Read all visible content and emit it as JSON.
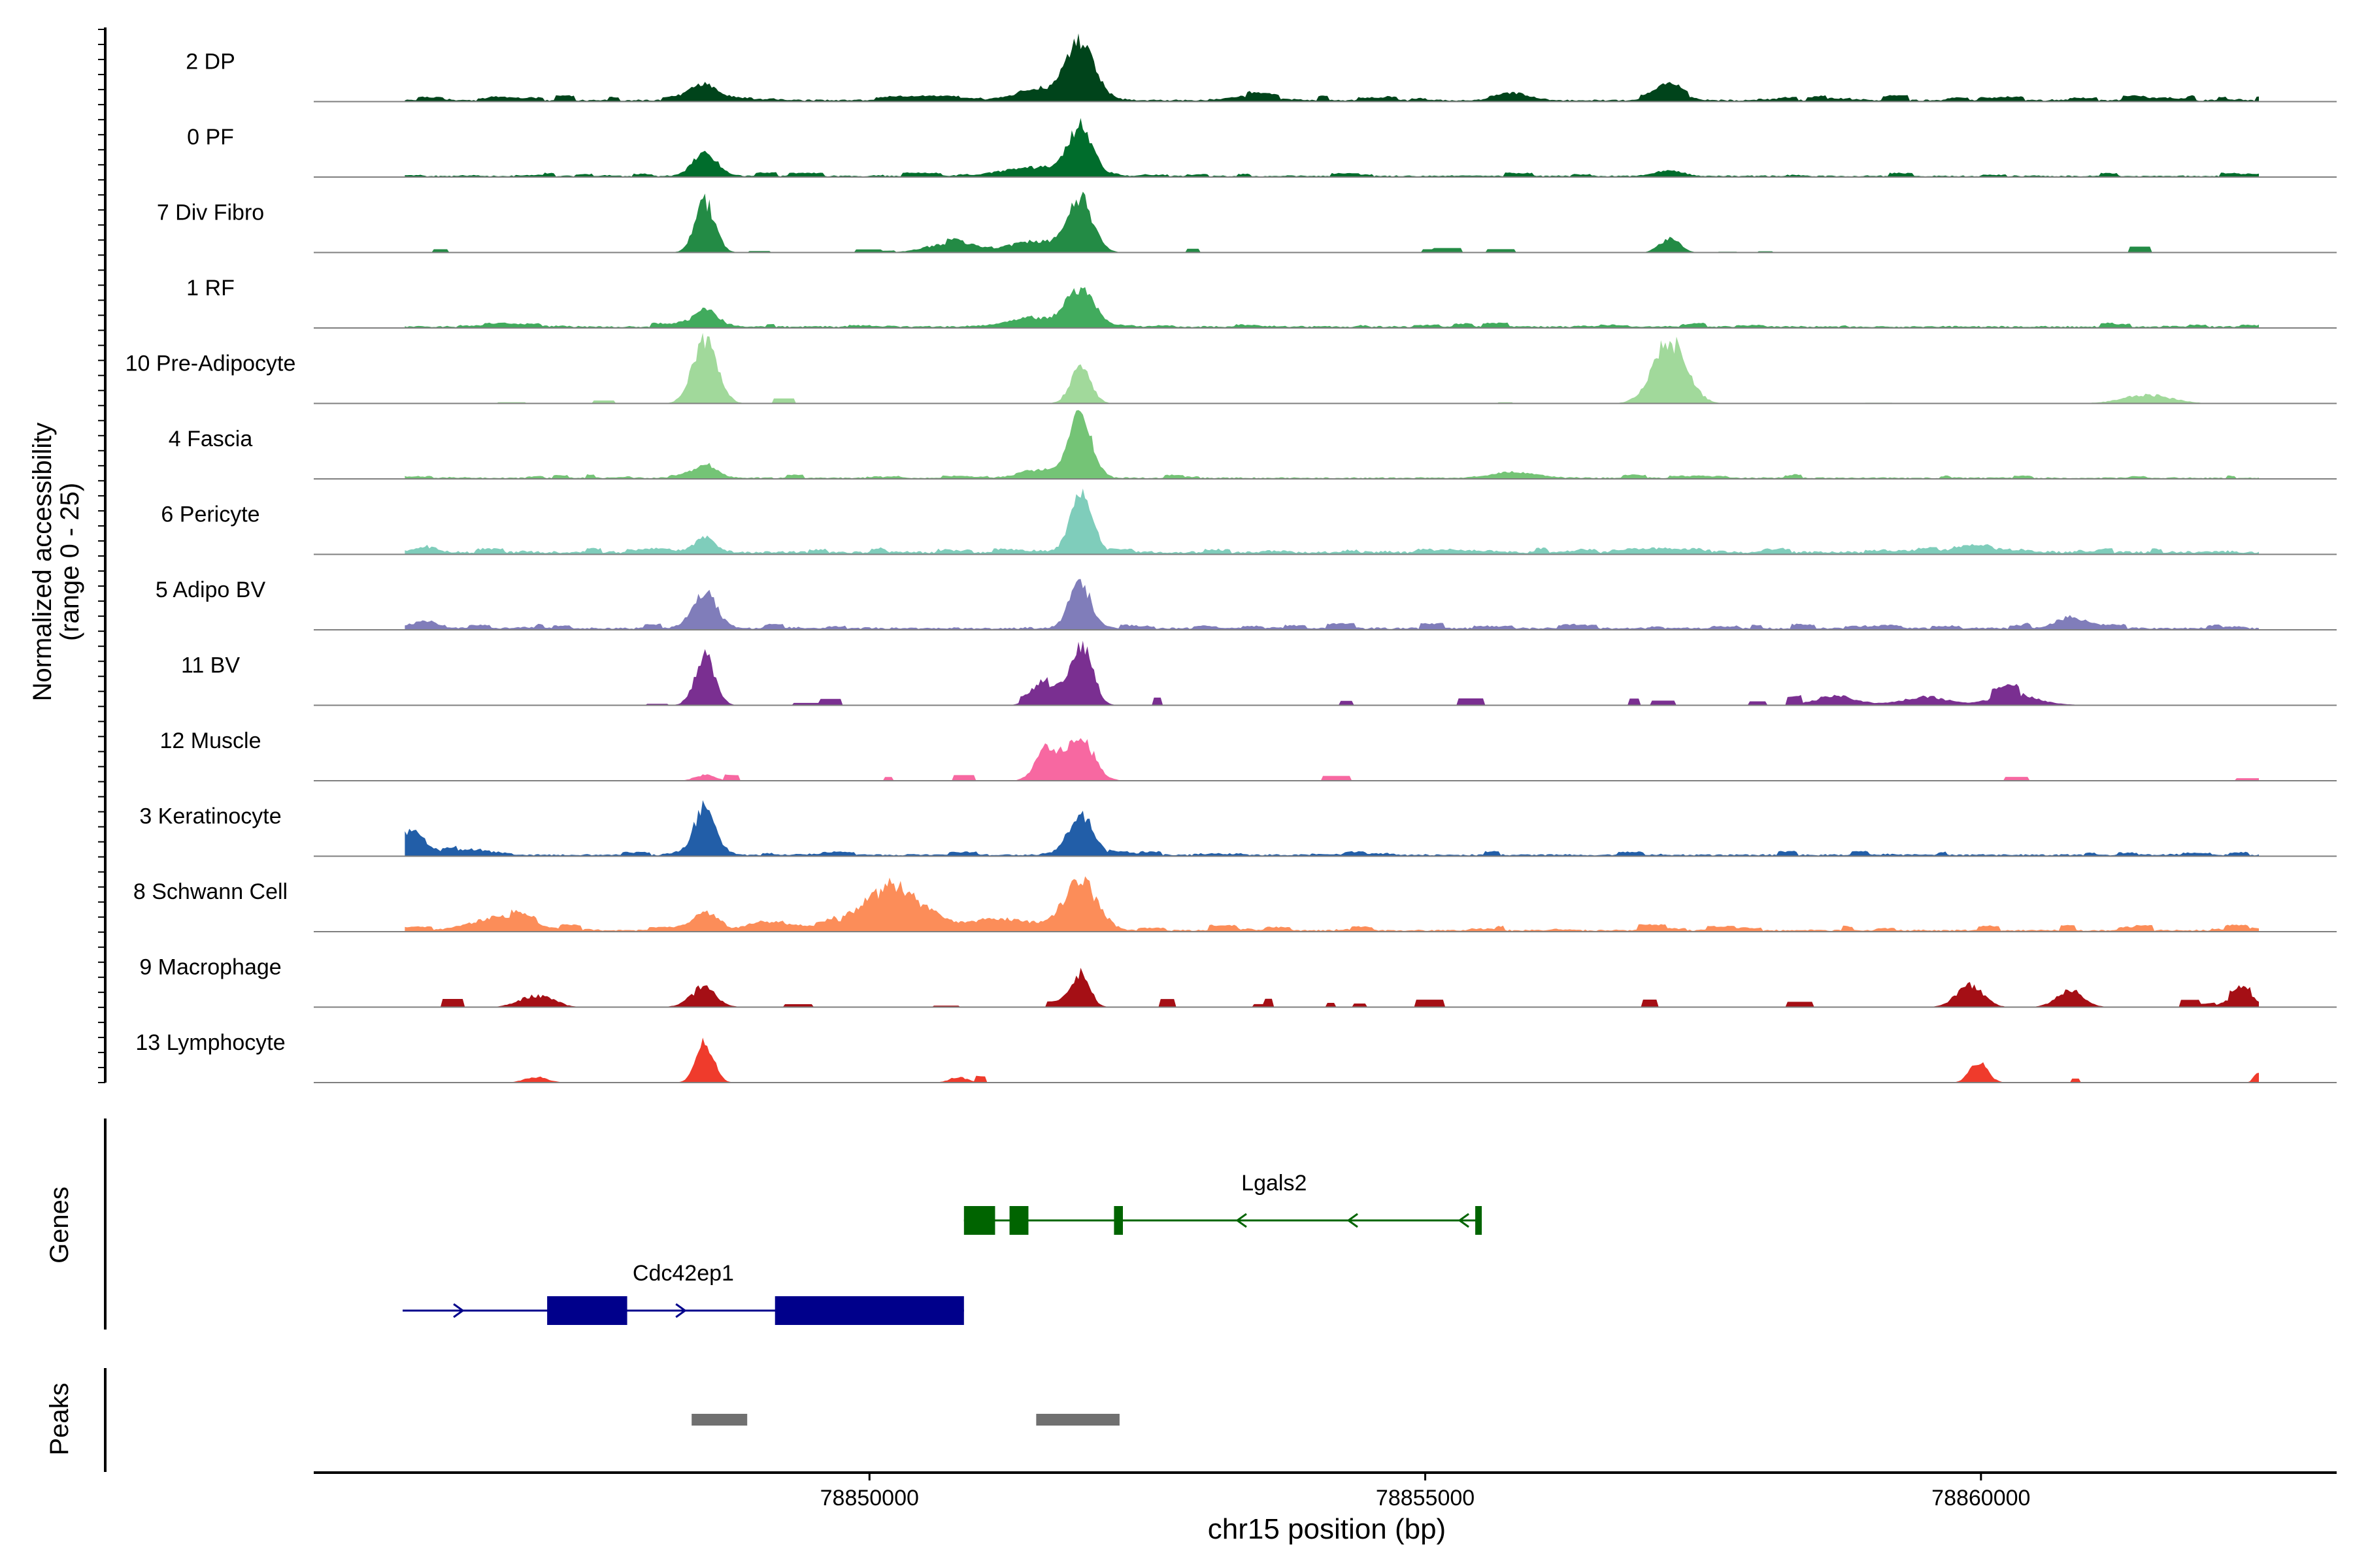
{
  "chart_data": {
    "type": "area",
    "ylabel_line1": "Normalized accessibility",
    "ylabel_line2": "(range 0 - 25)",
    "ylim": [
      0,
      25
    ],
    "xlabel": "chr15 position (bp)",
    "xlim": [
      78845000,
      78863200
    ],
    "xticks": [
      78850000,
      78855000,
      78860000
    ],
    "xtick_labels": [
      "78850000",
      "78855000",
      "78860000"
    ],
    "track_start": 78845820,
    "track_end": 78862500,
    "genes_label": "Genes",
    "peaks_label": "Peaks",
    "tracks": [
      {
        "name": "2 DP",
        "color": "#00441b",
        "baseline": 0.5,
        "noise_p": 0.55,
        "noise_h": 1.6,
        "seed": 3,
        "peaks": [
          [
            78848520,
            120,
            5.5
          ],
          [
            78851900,
            130,
            19
          ],
          [
            78851580,
            250,
            3
          ],
          [
            78857200,
            120,
            4.5
          ],
          [
            78855800,
            140,
            2.5
          ],
          [
            78853400,
            180,
            1.3
          ]
        ]
      },
      {
        "name": "0 PF",
        "color": "#006d2c",
        "baseline": 0.4,
        "noise_p": 0.45,
        "noise_h": 1.2,
        "seed": 7,
        "peaks": [
          [
            78848520,
            110,
            8
          ],
          [
            78851900,
            110,
            16
          ],
          [
            78851500,
            300,
            3
          ],
          [
            78857200,
            120,
            2
          ]
        ]
      },
      {
        "name": "7 Div Fibro",
        "color": "#238b45",
        "baseline": 0,
        "noise_p": 0.12,
        "noise_h": 2.5,
        "seed": 11,
        "peaks": [
          [
            78848520,
            90,
            18
          ],
          [
            78851900,
            110,
            18
          ],
          [
            78851500,
            250,
            4
          ],
          [
            78857200,
            90,
            5
          ],
          [
            78850700,
            200,
            3
          ]
        ]
      },
      {
        "name": "1 RF",
        "color": "#41ab5d",
        "baseline": 0.5,
        "noise_p": 0.35,
        "noise_h": 1.3,
        "seed": 5,
        "peaks": [
          [
            78848520,
            110,
            6
          ],
          [
            78851900,
            120,
            13
          ],
          [
            78851500,
            250,
            3
          ]
        ]
      },
      {
        "name": "10 Pre-Adipocyte",
        "color": "#a1d99b",
        "baseline": 0,
        "noise_p": 0.13,
        "noise_h": 2.8,
        "seed": 13,
        "peaks": [
          [
            78848520,
            110,
            22
          ],
          [
            78851900,
            90,
            13
          ],
          [
            78857200,
            150,
            22
          ],
          [
            78861500,
            220,
            3
          ]
        ]
      },
      {
        "name": "4 Fascia",
        "color": "#74c476",
        "baseline": 0.4,
        "noise_p": 0.3,
        "noise_h": 1.2,
        "seed": 17,
        "peaks": [
          [
            78848520,
            100,
            5
          ],
          [
            78851900,
            100,
            21
          ],
          [
            78851600,
            200,
            3
          ],
          [
            78855800,
            200,
            2
          ]
        ]
      },
      {
        "name": "6 Pericyte",
        "color": "#7fcdbb",
        "baseline": 0.8,
        "noise_p": 0.5,
        "noise_h": 1.4,
        "seed": 19,
        "peaks": [
          [
            78848520,
            90,
            5
          ],
          [
            78851900,
            100,
            20
          ],
          [
            78846000,
            100,
            2
          ],
          [
            78860000,
            300,
            1.5
          ]
        ]
      },
      {
        "name": "5 Adipo BV",
        "color": "#807dba",
        "baseline": 0.6,
        "noise_p": 0.45,
        "noise_h": 1.6,
        "seed": 23,
        "peaks": [
          [
            78848520,
            110,
            12
          ],
          [
            78851900,
            100,
            14
          ],
          [
            78860800,
            120,
            4
          ],
          [
            78846000,
            120,
            2.5
          ]
        ]
      },
      {
        "name": "11 BV",
        "color": "#7a2f91",
        "baseline": 0,
        "noise_p": 0.16,
        "noise_h": 3.2,
        "seed": 29,
        "peaks": [
          [
            78848520,
            90,
            17
          ],
          [
            78851900,
            100,
            20
          ],
          [
            78851600,
            120,
            7
          ],
          [
            78860300,
            200,
            4
          ],
          [
            78859500,
            200,
            3
          ],
          [
            78858700,
            200,
            3
          ]
        ]
      },
      {
        "name": "12 Muscle",
        "color": "#f768a1",
        "baseline": 0,
        "noise_p": 0.1,
        "noise_h": 2.0,
        "seed": 31,
        "peaks": [
          [
            78851900,
            120,
            15
          ],
          [
            78851600,
            100,
            12
          ],
          [
            78848520,
            90,
            2
          ]
        ]
      },
      {
        "name": "3 Keratinocyte",
        "color": "#225ea8",
        "baseline": 0.5,
        "noise_p": 0.4,
        "noise_h": 1.2,
        "seed": 37,
        "peaks": [
          [
            78848520,
            100,
            16
          ],
          [
            78851900,
            110,
            14
          ],
          [
            78845880,
            120,
            8
          ],
          [
            78846400,
            200,
            2
          ]
        ]
      },
      {
        "name": "8 Schwann Cell",
        "color": "#fc8d59",
        "baseline": 0.5,
        "noise_p": 0.35,
        "noise_h": 2.0,
        "seed": 41,
        "peaks": [
          [
            78850200,
            280,
            15
          ],
          [
            78851900,
            150,
            17
          ],
          [
            78848520,
            100,
            5
          ],
          [
            78846700,
            250,
            5
          ],
          [
            78849100,
            200,
            3
          ],
          [
            78851200,
            300,
            4
          ]
        ]
      },
      {
        "name": "9 Macrophage",
        "color": "#a50f15",
        "baseline": 0,
        "noise_p": 0.22,
        "noise_h": 3.0,
        "seed": 43,
        "peaks": [
          [
            78851900,
            80,
            12
          ],
          [
            78848500,
            120,
            6
          ],
          [
            78859900,
            120,
            8
          ],
          [
            78860800,
            120,
            6
          ],
          [
            78862350,
            120,
            5
          ],
          [
            78847000,
            150,
            4
          ]
        ]
      },
      {
        "name": "13 Lymphocyte",
        "color": "#ef3b2c",
        "baseline": 0,
        "noise_p": 0.05,
        "noise_h": 2.5,
        "seed": 47,
        "peaks": [
          [
            78848520,
            80,
            14
          ],
          [
            78859980,
            80,
            7
          ],
          [
            78862500,
            40,
            4
          ],
          [
            78850800,
            80,
            2
          ],
          [
            78847000,
            100,
            2
          ]
        ]
      }
    ],
    "genes": [
      {
        "name": "Lgals2",
        "strand": "-",
        "color": "#006400",
        "start": 78850850,
        "end": 78855500,
        "row": 0,
        "exons": [
          [
            78850850,
            78851130,
            "cds"
          ],
          [
            78851260,
            78851430,
            "cds"
          ],
          [
            78852200,
            78852280,
            "cds"
          ],
          [
            78855450,
            78855500,
            "cds"
          ]
        ]
      },
      {
        "name": "Cdc42ep1",
        "strand": "+",
        "color": "#00008b",
        "start": 78845800,
        "end": 78850850,
        "row": 1,
        "exons": [
          [
            78847100,
            78847820,
            "cds"
          ],
          [
            78849150,
            78850850,
            "cds"
          ]
        ]
      }
    ],
    "peaks": [
      [
        78848400,
        78848900
      ],
      [
        78851500,
        78852250
      ]
    ]
  }
}
